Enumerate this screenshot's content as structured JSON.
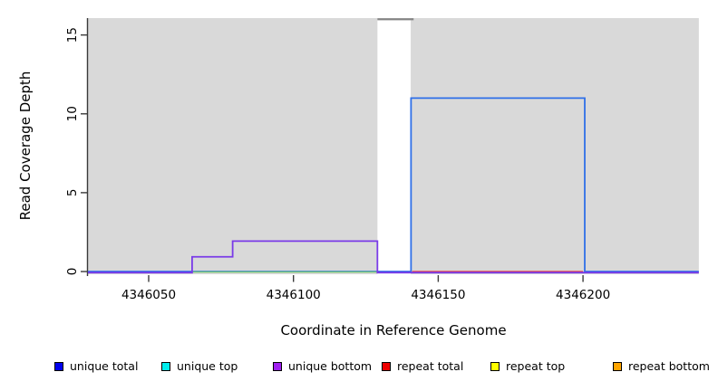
{
  "chart_data": {
    "type": "line",
    "title": "",
    "xlabel": "Coordinate in Reference Genome",
    "ylabel": "Read Coverage Depth",
    "xlim": [
      4346029,
      4346240
    ],
    "ylim": [
      0,
      16.1
    ],
    "grid": false,
    "legend_position": "bottom",
    "background_color": "#ffffff",
    "shaded_region_color": "#d9d9d9",
    "axis_color": "#3a3a3a",
    "x_ticks": [
      {
        "value": 4346050,
        "label": "4346050"
      },
      {
        "value": 4346100,
        "label": "4346100"
      },
      {
        "value": 4346150,
        "label": "4346150"
      },
      {
        "value": 4346200,
        "label": "4346200"
      }
    ],
    "y_ticks": [
      {
        "value": 0,
        "label": "0"
      },
      {
        "value": 5,
        "label": "5"
      },
      {
        "value": 10,
        "label": "10"
      },
      {
        "value": 15,
        "label": "15"
      }
    ],
    "shaded_regions": [
      {
        "from": 4346029,
        "to": 4346129
      },
      {
        "from": 4346140.5,
        "to": 4346240
      }
    ],
    "clipped_peak_segment": {
      "from": 4346129,
      "to": 4346141.5,
      "value": 16,
      "color": "#848484",
      "note": "coverage exceeds y-axis range inside unshaded gap"
    },
    "series": [
      {
        "name": "unique total",
        "color": "#2e6fe8",
        "points": [
          [
            4346029,
            0
          ],
          [
            4346140.6,
            0
          ],
          [
            4346140.6,
            11
          ],
          [
            4346200.6,
            11
          ],
          [
            4346200.6,
            0
          ],
          [
            4346240,
            0
          ]
        ]
      },
      {
        "name": "unique top / repeat top overlap (renders green)",
        "color": "#77c877",
        "points": [
          [
            4346065,
            0
          ],
          [
            4346129,
            0
          ]
        ]
      },
      {
        "name": "repeat total",
        "color": "#e84545",
        "points": [
          [
            4346141,
            0
          ],
          [
            4346200,
            0
          ]
        ]
      },
      {
        "name": "unique bottom",
        "color": "#7a3be8",
        "points": [
          [
            4346029,
            0
          ],
          [
            4346065,
            0
          ],
          [
            4346065,
            1
          ],
          [
            4346079,
            1
          ],
          [
            4346079,
            2
          ],
          [
            4346129,
            2
          ],
          [
            4346129,
            0
          ],
          [
            4346240,
            0
          ]
        ]
      }
    ],
    "legend": [
      {
        "label": "unique total",
        "color": "#0000ee"
      },
      {
        "label": "unique top",
        "color": "#00eeee"
      },
      {
        "label": "unique bottom",
        "color": "#a020f0"
      },
      {
        "label": "repeat total",
        "color": "#ee0000"
      },
      {
        "label": "repeat top",
        "color": "#ffff00"
      },
      {
        "label": "repeat bottom",
        "color": "#ffa500"
      }
    ]
  }
}
